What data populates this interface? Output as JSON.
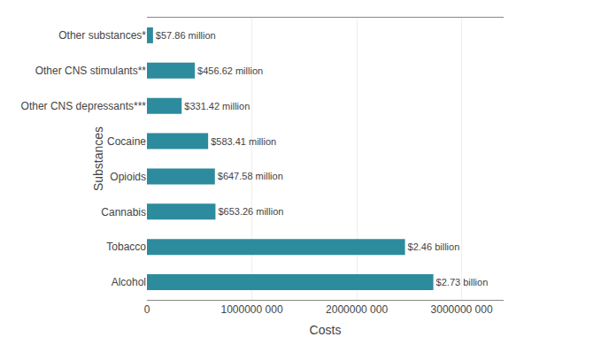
{
  "chart_data": {
    "type": "bar",
    "orientation": "horizontal",
    "categories": [
      "Alcohol",
      "Tobacco",
      "Cannabis",
      "Opioids",
      "Cocaine",
      "Other CNS depressants***",
      "Other CNS stimulants**",
      "Other substances*"
    ],
    "values": [
      2730000000,
      2460000000,
      653260000,
      647580000,
      583410000,
      331420000,
      456620000,
      57860000
    ],
    "value_labels": [
      "$2.73 billion",
      "$2.46 billion",
      "$653.26 million",
      "$647.58 million",
      "$583.41 million",
      "$331.42 million",
      "$456.62 million",
      "$57.86 million"
    ],
    "data_labels": true,
    "color": "#2d8b9e",
    "x_label": "Costs",
    "y_label": "Substances",
    "xlim": [
      0,
      3400000000
    ],
    "xticks": [
      0,
      {
        "value": 1000000000,
        "label": "1000000 000"
      },
      {
        "value": 2000000000,
        "label": "2000000 000"
      },
      {
        "value": 3000000000,
        "label": "3000000 000"
      }
    ],
    "grid": true
  }
}
